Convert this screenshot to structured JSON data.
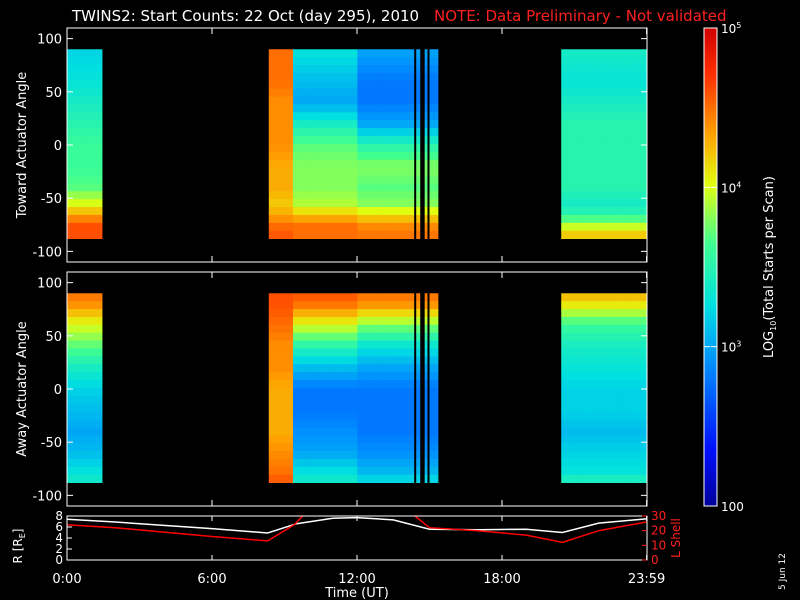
{
  "title": {
    "main": "TWINS2: Start Counts: 22 Oct (day 295), 2010",
    "note": "NOTE: Data Preliminary - Not validated",
    "note_color": "#ff2020"
  },
  "date_stamp": "5 Jun 12",
  "chart_data": [
    {
      "type": "heatmap",
      "ylabel": "Toward Actuator Angle",
      "xrange_hours": [
        0,
        24
      ],
      "ylim": [
        -110,
        110
      ],
      "yticks": [
        100,
        50,
        0,
        -50,
        -100
      ],
      "data_ylim": [
        -88,
        90
      ],
      "data_segments_hours": [
        [
          0,
          1.45
        ],
        [
          8.35,
          14.35
        ],
        [
          14.45,
          14.6
        ],
        [
          14.8,
          14.9
        ],
        [
          15.0,
          15.35
        ],
        [
          20.45,
          24.0
        ]
      ],
      "profile_angles": [
        90,
        60,
        40,
        20,
        0,
        -20,
        -40,
        -55,
        -65,
        -75,
        -88
      ],
      "profile_log10_counts": {
        "0.0-1.45": [
          3.2,
          3.3,
          3.4,
          3.5,
          3.6,
          3.6,
          3.7,
          4.0,
          4.3,
          4.6,
          4.6
        ],
        "8.35-9.4": [
          4.5,
          4.5,
          4.4,
          4.4,
          4.4,
          4.3,
          4.3,
          4.2,
          4.3,
          4.5,
          4.6
        ],
        "9.4-12.0": [
          3.3,
          3.1,
          3.0,
          3.4,
          3.7,
          3.8,
          3.8,
          3.9,
          4.2,
          4.5,
          4.5
        ],
        "12.0-15.35": [
          3.0,
          2.8,
          2.8,
          3.0,
          3.5,
          3.8,
          3.7,
          3.8,
          4.1,
          4.4,
          4.5
        ],
        "20.45-24.0": [
          3.4,
          3.3,
          3.4,
          3.5,
          3.5,
          3.5,
          3.5,
          3.4,
          3.5,
          3.9,
          4.3
        ]
      }
    },
    {
      "type": "heatmap",
      "ylabel": "Away Actuator Angle",
      "xrange_hours": [
        0,
        24
      ],
      "ylim": [
        -110,
        110
      ],
      "yticks": [
        100,
        50,
        0,
        -50,
        -100
      ],
      "data_ylim": [
        -88,
        90
      ],
      "data_segments_hours": [
        [
          0,
          1.45
        ],
        [
          8.35,
          14.35
        ],
        [
          14.45,
          14.6
        ],
        [
          14.8,
          14.9
        ],
        [
          15.0,
          15.35
        ],
        [
          20.45,
          24.0
        ]
      ],
      "profile_angles": [
        90,
        80,
        60,
        40,
        20,
        0,
        -20,
        -40,
        -60,
        -80,
        -88
      ],
      "profile_log10_counts": {
        "0.0-1.45": [
          4.5,
          4.4,
          4.0,
          3.7,
          3.4,
          3.2,
          3.1,
          3.0,
          3.1,
          3.3,
          3.4
        ],
        "8.35-9.4": [
          4.6,
          4.6,
          4.5,
          4.4,
          4.4,
          4.3,
          4.3,
          4.3,
          4.4,
          4.5,
          4.6
        ],
        "9.4-12.0": [
          4.6,
          4.5,
          4.0,
          3.5,
          3.1,
          2.8,
          2.8,
          2.9,
          3.0,
          3.3,
          3.4
        ],
        "12.0-15.35": [
          4.5,
          4.4,
          3.8,
          3.3,
          3.0,
          2.8,
          2.8,
          2.8,
          2.9,
          3.1,
          3.3
        ],
        "20.45-24.0": [
          4.3,
          4.1,
          3.6,
          3.4,
          3.3,
          3.2,
          3.2,
          3.1,
          3.2,
          3.3,
          3.5
        ]
      }
    },
    {
      "type": "line",
      "xlabel": "Time (UT)",
      "ylabel": "R [R",
      "ylabel_sub": "E",
      "ylabel_close": "]",
      "ylim": [
        0,
        8
      ],
      "yticks": [
        0,
        2,
        4,
        6,
        8
      ],
      "y2label": "L Shell",
      "y2lim": [
        0,
        30
      ],
      "y2ticks": [
        0,
        10,
        20,
        30
      ],
      "xticks_hours": [
        0,
        6,
        12,
        18,
        23.983
      ],
      "xtick_labels": [
        "0:00",
        "6:00",
        "12:00",
        "18:00",
        "23:59"
      ],
      "series": [
        {
          "axis": "R",
          "color": "#ffffff",
          "x": [
            0,
            2,
            4,
            6,
            8.3,
            9.5,
            11,
            12,
            13.5,
            15,
            17,
            19,
            20.5,
            22,
            24
          ],
          "y": [
            7.4,
            6.9,
            6.3,
            5.7,
            4.9,
            6.6,
            7.6,
            7.7,
            7.3,
            5.6,
            5.5,
            5.6,
            5.0,
            6.7,
            7.5
          ]
        },
        {
          "axis": "L",
          "color": "#ff0000",
          "x": [
            0,
            2,
            4,
            6,
            8.3,
            9.4,
            9.75,
            null,
            14.4,
            15.0,
            17,
            19,
            20.5,
            22,
            24
          ],
          "y": [
            24,
            22,
            19,
            16,
            13,
            24,
            30,
            null,
            30,
            22,
            20,
            17,
            12,
            20,
            26
          ]
        }
      ]
    }
  ],
  "colorbar": {
    "label_pre": "LOG",
    "label_sub": "10",
    "label_post": "(Total Starts per Scan)",
    "ticks": [
      {
        "log": 5,
        "base": "10",
        "exp": "5",
        "plain": ""
      },
      {
        "log": 4,
        "base": "10",
        "exp": "4",
        "plain": ""
      },
      {
        "log": 3,
        "base": "10",
        "exp": "3",
        "plain": ""
      },
      {
        "log": 2,
        "base": "",
        "exp": "",
        "plain": "100"
      }
    ],
    "range_log": [
      2,
      5
    ]
  }
}
